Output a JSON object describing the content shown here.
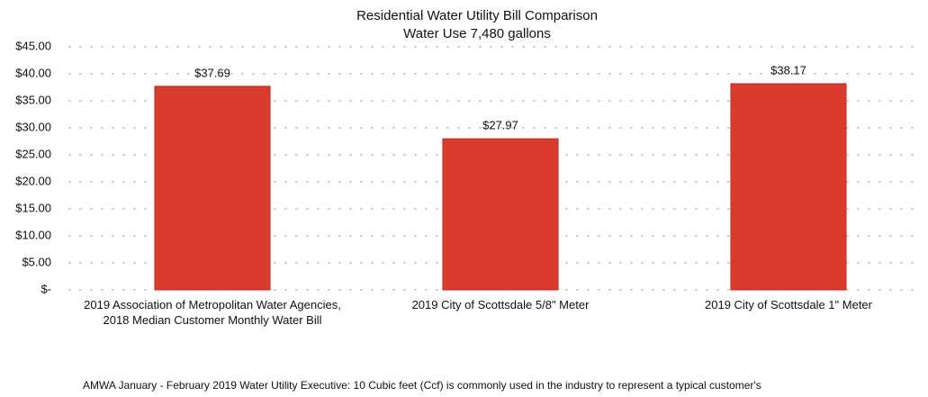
{
  "chart_data": {
    "type": "bar",
    "title": "Residential Water Utility Bill Comparison",
    "subtitle": "Water Use 7,480 gallons",
    "categories": [
      "2019 Association of Metropolitan Water Agencies, 2018 Median Customer Monthly Water Bill",
      "2019 City of Scottsdale 5/8\" Meter",
      "2019 City of Scottsdale 1\" Meter"
    ],
    "values": [
      37.69,
      27.97,
      38.17
    ],
    "value_labels": [
      "$37.69",
      "$27.97",
      "$38.17"
    ],
    "color": "#d93a2e",
    "ylim": [
      0,
      45
    ],
    "yticks": [
      {
        "value": 0,
        "label": "$-"
      },
      {
        "value": 5,
        "label": "$5.00"
      },
      {
        "value": 10,
        "label": "$10.00"
      },
      {
        "value": 15,
        "label": "$15.00"
      },
      {
        "value": 20,
        "label": "$20.00"
      },
      {
        "value": 25,
        "label": "$25.00"
      },
      {
        "value": 30,
        "label": "$30.00"
      },
      {
        "value": 35,
        "label": "$35.00"
      },
      {
        "value": 40,
        "label": "$40.00"
      },
      {
        "value": 45,
        "label": "$45.00"
      }
    ],
    "grid": true,
    "footnote": "AMWA January - February 2019 Water Utility Executive: 10 Cubic feet (Ccf) is commonly used in the industry to represent a typical customer's"
  }
}
